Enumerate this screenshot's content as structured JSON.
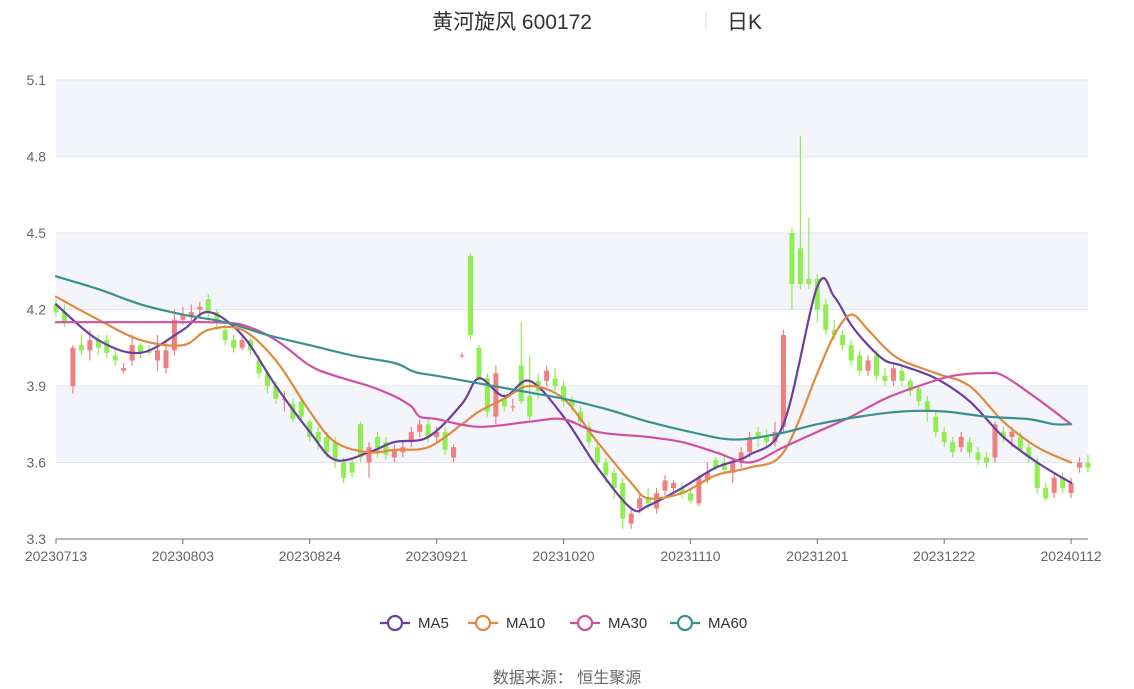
{
  "header": {
    "title_left": "黄河旋风 600172",
    "title_right": "日K"
  },
  "source_text": "数据来源： 恒生聚源",
  "chart_data": {
    "type": "candlestick",
    "title": "黄河旋风 600172 日K",
    "ylim": [
      3.3,
      5.1
    ],
    "yticks": [
      3.3,
      3.6,
      3.9,
      4.2,
      4.5,
      4.8,
      5.1
    ],
    "ytick_labels": [
      "3.3",
      "3.6",
      "3.9",
      "4.2",
      "4.5",
      "4.8",
      "5.1"
    ],
    "xtick_labels": [
      "20230713",
      "20230803",
      "20230824",
      "20230921",
      "20231020",
      "20231110",
      "20231201",
      "20231222",
      "20240112"
    ],
    "xtick_index": [
      0,
      15,
      30,
      45,
      60,
      75,
      90,
      105,
      120
    ],
    "grid": true,
    "legend_position": "bottom",
    "up_color": "#f08080",
    "down_color": "#90ee50",
    "ohlc": [
      [
        4.22,
        4.19,
        4.24,
        4.17
      ],
      [
        4.19,
        4.15,
        4.22,
        4.13
      ],
      [
        3.9,
        4.05,
        4.06,
        3.87
      ],
      [
        4.06,
        4.04,
        4.1,
        4.02
      ],
      [
        4.04,
        4.08,
        4.12,
        4.0
      ],
      [
        4.08,
        4.05,
        4.1,
        4.02
      ],
      [
        4.08,
        4.03,
        4.1,
        4.01
      ],
      [
        4.02,
        4.0,
        4.05,
        3.98
      ],
      [
        3.96,
        3.97,
        3.99,
        3.95
      ],
      [
        4.0,
        4.06,
        4.1,
        3.98
      ],
      [
        4.06,
        4.03,
        4.07,
        4.01
      ],
      [
        4.04,
        4.03,
        4.06,
        4.02
      ],
      [
        4.0,
        4.04,
        4.1,
        3.96
      ],
      [
        3.97,
        4.04,
        4.08,
        3.95
      ],
      [
        4.04,
        4.16,
        4.2,
        4.02
      ],
      [
        4.16,
        4.18,
        4.21,
        4.14
      ],
      [
        4.17,
        4.19,
        4.22,
        4.15
      ],
      [
        4.2,
        4.21,
        4.23,
        4.17
      ],
      [
        4.24,
        4.19,
        4.26,
        4.15
      ],
      [
        4.19,
        4.15,
        4.2,
        4.12
      ],
      [
        4.12,
        4.08,
        4.14,
        4.06
      ],
      [
        4.08,
        4.05,
        4.1,
        4.03
      ],
      [
        4.05,
        4.08,
        4.1,
        4.04
      ],
      [
        4.08,
        4.04,
        4.09,
        4.02
      ],
      [
        4.0,
        3.95,
        4.02,
        3.93
      ],
      [
        3.95,
        3.9,
        3.96,
        3.87
      ],
      [
        3.9,
        3.85,
        3.92,
        3.83
      ],
      [
        3.85,
        3.85,
        3.88,
        3.8
      ],
      [
        3.83,
        3.77,
        3.85,
        3.76
      ],
      [
        3.84,
        3.78,
        3.86,
        3.76
      ],
      [
        3.76,
        3.7,
        3.77,
        3.68
      ],
      [
        3.72,
        3.68,
        3.74,
        3.65
      ],
      [
        3.7,
        3.64,
        3.72,
        3.62
      ],
      [
        3.68,
        3.61,
        3.7,
        3.58
      ],
      [
        3.6,
        3.54,
        3.62,
        3.52
      ],
      [
        3.6,
        3.56,
        3.62,
        3.54
      ],
      [
        3.75,
        3.62,
        3.76,
        3.6
      ],
      [
        3.6,
        3.66,
        3.68,
        3.54
      ],
      [
        3.7,
        3.64,
        3.72,
        3.62
      ],
      [
        3.68,
        3.63,
        3.7,
        3.61
      ],
      [
        3.62,
        3.65,
        3.67,
        3.6
      ],
      [
        3.64,
        3.66,
        3.68,
        3.62
      ],
      [
        3.68,
        3.72,
        3.74,
        3.66
      ],
      [
        3.72,
        3.75,
        3.77,
        3.7
      ],
      [
        3.75,
        3.7,
        3.77,
        3.68
      ],
      [
        3.7,
        3.72,
        3.74,
        3.68
      ],
      [
        3.72,
        3.65,
        3.74,
        3.63
      ],
      [
        3.62,
        3.66,
        3.67,
        3.6
      ],
      [
        4.02,
        4.02,
        4.03,
        4.01
      ],
      [
        4.41,
        4.1,
        4.42,
        4.08
      ],
      [
        4.05,
        3.93,
        4.06,
        3.92
      ],
      [
        3.93,
        3.8,
        3.95,
        3.78
      ],
      [
        3.78,
        3.95,
        3.98,
        3.75
      ],
      [
        3.85,
        3.82,
        3.87,
        3.8
      ],
      [
        3.82,
        3.82,
        3.85,
        3.8
      ],
      [
        3.98,
        3.84,
        4.15,
        3.83
      ],
      [
        3.86,
        3.78,
        4.02,
        3.76
      ],
      [
        3.92,
        3.88,
        3.95,
        3.85
      ],
      [
        3.92,
        3.96,
        3.98,
        3.9
      ],
      [
        3.93,
        3.9,
        3.97,
        3.88
      ],
      [
        3.9,
        3.84,
        3.92,
        3.82
      ],
      [
        3.84,
        3.82,
        3.86,
        3.8
      ],
      [
        3.8,
        3.76,
        3.82,
        3.74
      ],
      [
        3.74,
        3.68,
        3.76,
        3.66
      ],
      [
        3.66,
        3.6,
        3.68,
        3.57
      ],
      [
        3.6,
        3.55,
        3.62,
        3.52
      ],
      [
        3.56,
        3.5,
        3.58,
        3.46
      ],
      [
        3.52,
        3.38,
        3.54,
        3.34
      ],
      [
        3.36,
        3.4,
        3.42,
        3.34
      ],
      [
        3.42,
        3.46,
        3.48,
        3.4
      ],
      [
        3.46,
        3.44,
        3.5,
        3.42
      ],
      [
        3.42,
        3.48,
        3.5,
        3.4
      ],
      [
        3.49,
        3.53,
        3.55,
        3.47
      ],
      [
        3.5,
        3.52,
        3.53,
        3.48
      ],
      [
        3.5,
        3.48,
        3.52,
        3.46
      ],
      [
        3.48,
        3.45,
        3.5,
        3.44
      ],
      [
        3.44,
        3.54,
        3.55,
        3.43
      ],
      [
        3.53,
        3.56,
        3.6,
        3.52
      ],
      [
        3.61,
        3.58,
        3.62,
        3.57
      ],
      [
        3.6,
        3.57,
        3.63,
        3.56
      ],
      [
        3.56,
        3.6,
        3.62,
        3.52
      ],
      [
        3.6,
        3.64,
        3.66,
        3.58
      ],
      [
        3.64,
        3.7,
        3.72,
        3.62
      ],
      [
        3.72,
        3.7,
        3.74,
        3.66
      ],
      [
        3.7,
        3.68,
        3.73,
        3.66
      ],
      [
        3.68,
        3.72,
        3.76,
        3.66
      ],
      [
        3.74,
        4.1,
        4.12,
        3.72
      ],
      [
        4.5,
        4.3,
        4.52,
        4.2
      ],
      [
        4.44,
        4.3,
        4.88,
        4.28
      ],
      [
        4.32,
        4.3,
        4.56,
        4.28
      ],
      [
        4.32,
        4.2,
        4.34,
        4.15
      ],
      [
        4.22,
        4.12,
        4.24,
        4.1
      ],
      [
        4.12,
        4.1,
        4.16,
        4.08
      ],
      [
        4.1,
        4.06,
        4.12,
        4.04
      ],
      [
        4.06,
        4.0,
        4.08,
        3.98
      ],
      [
        4.02,
        3.96,
        4.04,
        3.94
      ],
      [
        3.96,
        4.0,
        4.02,
        3.94
      ],
      [
        4.02,
        3.94,
        4.04,
        3.92
      ],
      [
        3.94,
        3.92,
        3.97,
        3.9
      ],
      [
        3.92,
        3.97,
        3.98,
        3.9
      ],
      [
        3.96,
        3.92,
        3.98,
        3.9
      ],
      [
        3.92,
        3.88,
        3.93,
        3.86
      ],
      [
        3.89,
        3.84,
        3.9,
        3.82
      ],
      [
        3.84,
        3.8,
        3.86,
        3.76
      ],
      [
        3.78,
        3.72,
        3.8,
        3.7
      ],
      [
        3.72,
        3.68,
        3.74,
        3.66
      ],
      [
        3.68,
        3.64,
        3.7,
        3.62
      ],
      [
        3.66,
        3.7,
        3.72,
        3.64
      ],
      [
        3.68,
        3.64,
        3.7,
        3.62
      ],
      [
        3.64,
        3.61,
        3.66,
        3.59
      ],
      [
        3.62,
        3.6,
        3.64,
        3.58
      ],
      [
        3.62,
        3.75,
        3.76,
        3.6
      ],
      [
        3.72,
        3.7,
        3.74,
        3.68
      ],
      [
        3.7,
        3.72,
        3.74,
        3.66
      ],
      [
        3.7,
        3.65,
        3.72,
        3.64
      ],
      [
        3.66,
        3.62,
        3.68,
        3.6
      ],
      [
        3.6,
        3.5,
        3.62,
        3.48
      ],
      [
        3.5,
        3.46,
        3.52,
        3.45
      ],
      [
        3.48,
        3.54,
        3.56,
        3.46
      ],
      [
        3.54,
        3.5,
        3.56,
        3.48
      ],
      [
        3.48,
        3.52,
        3.54,
        3.46
      ],
      [
        3.58,
        3.6,
        3.62,
        3.56
      ],
      [
        3.6,
        3.58,
        3.63,
        3.56
      ]
    ],
    "series": [
      {
        "name": "MA5",
        "color": "#6a3fa0",
        "x": [
          0,
          5,
          10,
          15,
          18,
          22,
          26,
          30,
          33,
          37,
          40,
          44,
          48,
          50,
          53,
          56,
          60,
          64,
          68,
          70,
          74,
          78,
          82,
          86,
          90,
          92,
          94,
          96,
          98,
          100,
          104,
          108,
          112,
          116,
          120
        ],
        "y": [
          4.22,
          4.08,
          4.03,
          4.12,
          4.19,
          4.1,
          3.9,
          3.72,
          3.61,
          3.64,
          3.68,
          3.7,
          3.83,
          3.93,
          3.86,
          3.92,
          3.78,
          3.58,
          3.42,
          3.43,
          3.5,
          3.58,
          3.63,
          3.75,
          4.29,
          4.25,
          4.14,
          4.06,
          4.0,
          3.98,
          3.93,
          3.84,
          3.7,
          3.6,
          3.52
        ]
      },
      {
        "name": "MA10",
        "color": "#e08a40",
        "x": [
          0,
          5,
          10,
          15,
          18,
          22,
          26,
          30,
          33,
          37,
          40,
          44,
          48,
          50,
          53,
          56,
          60,
          64,
          68,
          70,
          74,
          78,
          82,
          86,
          90,
          92,
          94,
          96,
          98,
          100,
          104,
          108,
          112,
          116,
          120
        ],
        "y": [
          4.25,
          4.16,
          4.08,
          4.06,
          4.12,
          4.12,
          4.0,
          3.8,
          3.68,
          3.64,
          3.65,
          3.66,
          3.75,
          3.8,
          3.85,
          3.9,
          3.85,
          3.68,
          3.52,
          3.46,
          3.48,
          3.55,
          3.58,
          3.64,
          3.95,
          4.1,
          4.18,
          4.12,
          4.05,
          4.0,
          3.95,
          3.9,
          3.76,
          3.66,
          3.6
        ]
      },
      {
        "name": "MA30",
        "color": "#d050a0",
        "x": [
          0,
          5,
          10,
          15,
          18,
          22,
          26,
          30,
          33,
          37,
          40,
          42,
          43,
          45,
          50,
          56,
          60,
          64,
          70,
          74,
          78,
          82,
          86,
          90,
          94,
          98,
          102,
          106,
          110,
          112,
          116,
          120
        ],
        "y": [
          4.15,
          4.15,
          4.15,
          4.15,
          4.15,
          4.14,
          4.08,
          3.98,
          3.94,
          3.9,
          3.86,
          3.82,
          3.78,
          3.77,
          3.74,
          3.76,
          3.77,
          3.72,
          3.7,
          3.68,
          3.64,
          3.6,
          3.66,
          3.72,
          3.78,
          3.85,
          3.9,
          3.94,
          3.95,
          3.94,
          3.85,
          3.75
        ]
      },
      {
        "name": "MA60",
        "color": "#3a9090",
        "x": [
          0,
          5,
          10,
          15,
          20,
          25,
          30,
          35,
          40,
          42,
          43,
          45,
          50,
          55,
          60,
          65,
          70,
          75,
          80,
          85,
          90,
          95,
          100,
          105,
          110,
          115,
          118,
          120
        ],
        "y": [
          4.33,
          4.28,
          4.22,
          4.18,
          4.15,
          4.1,
          4.06,
          4.02,
          3.99,
          3.96,
          3.95,
          3.94,
          3.91,
          3.88,
          3.85,
          3.81,
          3.76,
          3.72,
          3.69,
          3.71,
          3.75,
          3.78,
          3.8,
          3.8,
          3.78,
          3.77,
          3.75,
          3.75
        ]
      }
    ]
  }
}
